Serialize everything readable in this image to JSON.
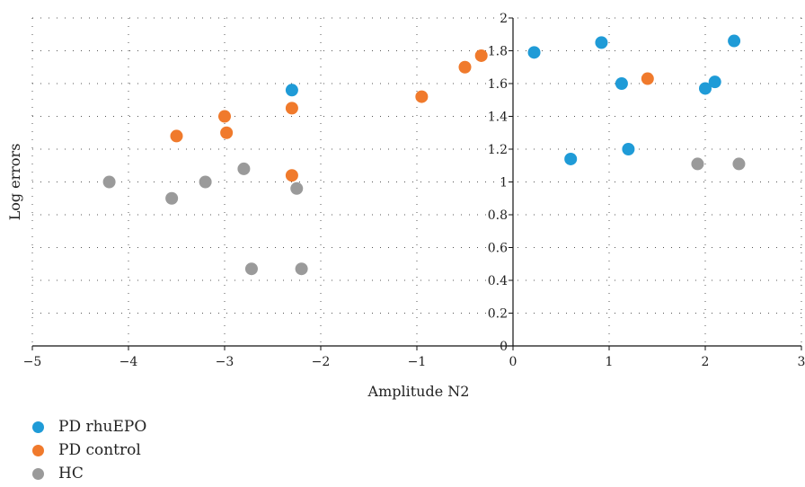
{
  "chart_data": {
    "type": "scatter",
    "xlabel": "Amplitude N2",
    "ylabel": "Log errors",
    "xlim": [
      -5,
      3
    ],
    "ylim": [
      0,
      2
    ],
    "x_ticks": [
      -5,
      -4,
      -3,
      -2,
      -1,
      0,
      1,
      2,
      3
    ],
    "x_tick_labels": [
      "−5",
      "−4",
      "−3",
      "−2",
      "−1",
      "0",
      "1",
      "2",
      "3"
    ],
    "y_ticks": [
      0,
      0.2,
      0.4,
      0.6,
      0.8,
      1,
      1.2,
      1.4,
      1.6,
      1.8,
      2
    ],
    "y_tick_labels": [
      "0",
      "0.2",
      "0.4",
      "0.6",
      "0.8",
      "1",
      "1.2",
      "1.4",
      "1.6",
      "1.8",
      "2"
    ],
    "grid": true,
    "legend_position": "bottom-left",
    "series": [
      {
        "name": "PD rhuEPO",
        "color": "#1f9bd7",
        "points": [
          [
            -2.3,
            1.56
          ],
          [
            0.22,
            1.79
          ],
          [
            0.6,
            1.14
          ],
          [
            0.92,
            1.85
          ],
          [
            1.13,
            1.6
          ],
          [
            1.2,
            1.2
          ],
          [
            2.0,
            1.57
          ],
          [
            2.1,
            1.61
          ],
          [
            2.3,
            1.86
          ]
        ]
      },
      {
        "name": "PD control",
        "color": "#f07a2c",
        "points": [
          [
            -3.5,
            1.28
          ],
          [
            -3.0,
            1.4
          ],
          [
            -2.98,
            1.3
          ],
          [
            -2.3,
            1.45
          ],
          [
            -2.3,
            1.04
          ],
          [
            -0.95,
            1.52
          ],
          [
            -0.5,
            1.7
          ],
          [
            -0.33,
            1.77
          ],
          [
            1.4,
            1.63
          ]
        ]
      },
      {
        "name": "HC",
        "color": "#9a9a9a",
        "points": [
          [
            -4.2,
            1.0
          ],
          [
            -3.55,
            0.9
          ],
          [
            -3.2,
            1.0
          ],
          [
            -2.8,
            1.08
          ],
          [
            -2.25,
            0.96
          ],
          [
            -2.72,
            0.47
          ],
          [
            -2.2,
            0.47
          ],
          [
            1.92,
            1.11
          ],
          [
            2.35,
            1.11
          ]
        ]
      }
    ]
  }
}
